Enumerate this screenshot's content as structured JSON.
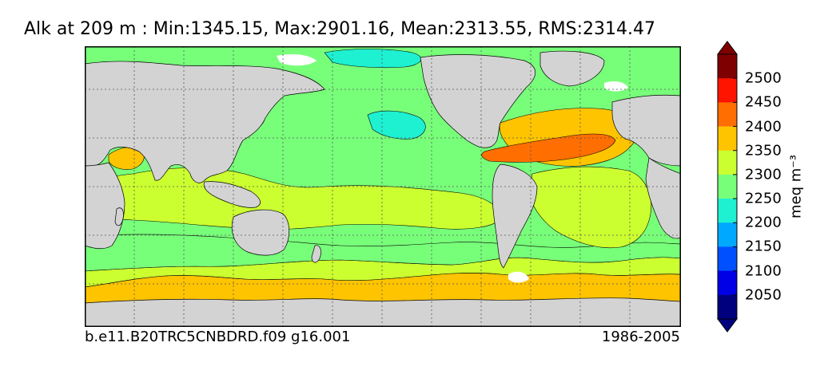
{
  "title": "Alk at 209 m : Min:1345.15, Max:2901.16, Mean:2313.55, RMS:2314.47",
  "case_label": "b.e11.B20TRC5CNBDRD.f09 g16.001",
  "period_label": "1986-2005",
  "chart_data": {
    "type": "heatmap",
    "title": "Alk at 209 m : Min:1345.15, Max:2901.16, Mean:2313.55, RMS:2314.47",
    "variable": "Alk",
    "depth": "209 m",
    "stats": {
      "min": 1345.15,
      "max": 2901.16,
      "mean": 2313.55,
      "rms": 2314.47
    },
    "colorbar": {
      "units": "meq m⁻³",
      "extend": "both",
      "levels": [
        2000,
        2050,
        2100,
        2150,
        2200,
        2250,
        2300,
        2350,
        2400,
        2450,
        2500,
        2550
      ],
      "tick_labels": [
        "2050",
        "2100",
        "2150",
        "2200",
        "2250",
        "2300",
        "2350",
        "2400",
        "2450",
        "2500"
      ],
      "colors": [
        "#00007f",
        "#0000e6",
        "#0050ff",
        "#00a8ff",
        "#1ef0d2",
        "#78ff7a",
        "#ccff30",
        "#ffc400",
        "#ff6e00",
        "#ff1400",
        "#7f0000"
      ],
      "under_color": "#000080",
      "over_color": "#800000"
    },
    "land_color": "#d3d3d3",
    "grid": true
  }
}
